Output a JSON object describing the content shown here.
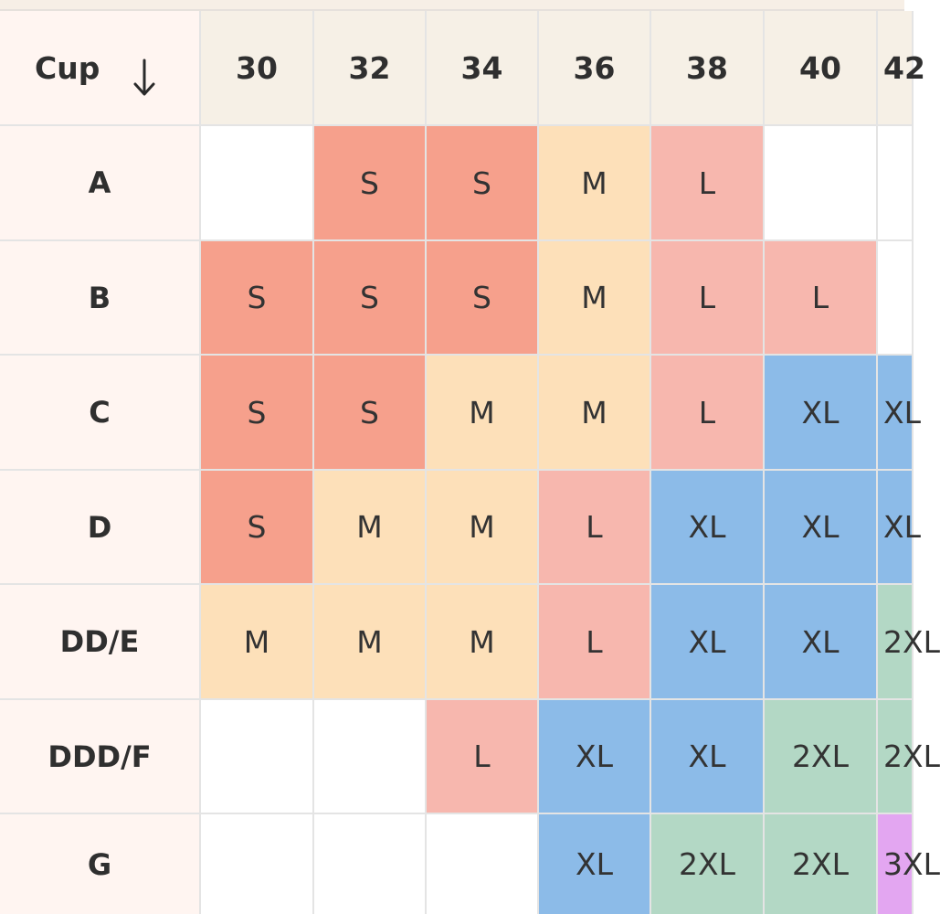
{
  "table": {
    "corner_label": "Cup",
    "corner_icon": "arrow-down-icon",
    "band_sizes": [
      "30",
      "32",
      "34",
      "36",
      "38",
      "40",
      "42"
    ],
    "cup_sizes": [
      "A",
      "B",
      "C",
      "D",
      "DD/E",
      "DDD/F",
      "G"
    ],
    "grid": [
      [
        "",
        "S",
        "S",
        "M",
        "L",
        "",
        ""
      ],
      [
        "S",
        "S",
        "S",
        "M",
        "L",
        "L",
        ""
      ],
      [
        "S",
        "S",
        "M",
        "M",
        "L",
        "XL",
        "XL"
      ],
      [
        "S",
        "M",
        "M",
        "L",
        "XL",
        "XL",
        "XL"
      ],
      [
        "M",
        "M",
        "M",
        "L",
        "XL",
        "XL",
        "2XL"
      ],
      [
        "",
        "",
        "L",
        "XL",
        "XL",
        "2XL",
        "2XL"
      ],
      [
        "",
        "",
        "",
        "XL",
        "2XL",
        "2XL",
        "3XL"
      ]
    ],
    "size_colors": {
      "S": "#f6a08c",
      "M": "#fde0b9",
      "L": "#f7b7ae",
      "XL": "#8cbbe8",
      "2XL": "#b3d8c5",
      "3XL": "#e3a6f1"
    }
  }
}
